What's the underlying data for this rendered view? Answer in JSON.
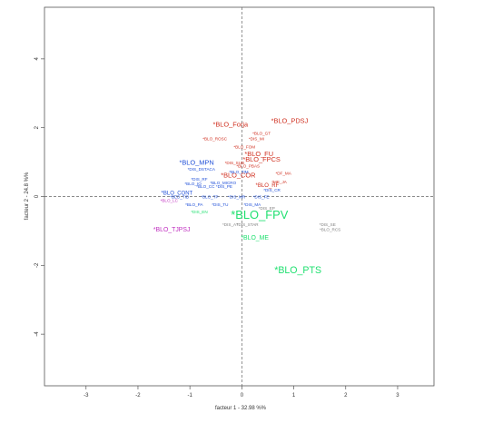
{
  "colors": {
    "red": "#d03020",
    "blue": "#2050d8",
    "green": "#20e070",
    "magenta": "#c030c0",
    "grey": "#808080",
    "frame": "#555555"
  },
  "chart_data": {
    "type": "scatter",
    "xlabel": "facteur 1 - 32.98 %%",
    "ylabel": "facteur 2 - 24.8 %%",
    "xlim": [
      -3.8,
      3.7
    ],
    "ylim": [
      -5.5,
      5.5
    ],
    "x_ticks": [
      -3,
      -2,
      -1,
      0,
      1,
      2,
      3
    ],
    "y_ticks": [
      -4,
      -2,
      0,
      2,
      4
    ],
    "reference_lines": {
      "x": 0,
      "y": 0,
      "style": "dashed"
    },
    "grid": false,
    "points": [
      {
        "label": "*BLO_PDSJ",
        "x": 0.92,
        "y": 2.19,
        "color": "red",
        "size": 1.6
      },
      {
        "label": "*BLO_Forja",
        "x": -0.22,
        "y": 2.08,
        "color": "red",
        "size": 1.6
      },
      {
        "label": "*BLO_GT",
        "x": 0.38,
        "y": 1.82,
        "color": "red",
        "size": 1.0
      },
      {
        "label": "*BLO_ROSC",
        "x": -0.52,
        "y": 1.67,
        "color": "red",
        "size": 1.0
      },
      {
        "label": "*DIS_MI",
        "x": 0.28,
        "y": 1.67,
        "color": "red",
        "size": 1.0
      },
      {
        "label": "*BLO_FOM",
        "x": 0.05,
        "y": 1.43,
        "color": "red",
        "size": 1.0
      },
      {
        "label": "*BLO_FU",
        "x": 0.33,
        "y": 1.23,
        "color": "red",
        "size": 1.6
      },
      {
        "label": "*BLO_FPCS",
        "x": 0.38,
        "y": 1.07,
        "color": "red",
        "size": 1.6
      },
      {
        "label": "*DIS_SUB",
        "x": -0.14,
        "y": 0.97,
        "color": "red",
        "size": 1.0
      },
      {
        "label": "*BLO_PBAS",
        "x": 0.12,
        "y": 0.88,
        "color": "red",
        "size": 1.0
      },
      {
        "label": "*BLO_COR",
        "x": -0.07,
        "y": 0.61,
        "color": "red",
        "size": 1.6
      },
      {
        "label": "*DF_MA",
        "x": 0.8,
        "y": 0.66,
        "color": "red",
        "size": 1.0
      },
      {
        "label": "*BLO_MPN",
        "x": -0.87,
        "y": 0.97,
        "color": "blue",
        "size": 1.6
      },
      {
        "label": "*DIS_DSTACA",
        "x": -0.78,
        "y": 0.78,
        "color": "blue",
        "size": 1.0
      },
      {
        "label": "*BLO_TIM",
        "x": -0.06,
        "y": 0.7,
        "color": "blue",
        "size": 1.0
      },
      {
        "label": "*DIS_RF",
        "x": -0.82,
        "y": 0.5,
        "color": "blue",
        "size": 1.0
      },
      {
        "label": "*BLO_IO",
        "x": -0.94,
        "y": 0.36,
        "color": "blue",
        "size": 1.0
      },
      {
        "label": "*BLO_CC",
        "x": -0.7,
        "y": 0.28,
        "color": "blue",
        "size": 1.0
      },
      {
        "label": "*DIS_PE",
        "x": -0.34,
        "y": 0.28,
        "color": "blue",
        "size": 1.0
      },
      {
        "label": "*BLO_CONT",
        "x": -1.25,
        "y": 0.1,
        "color": "blue",
        "size": 1.3
      },
      {
        "label": "*DIS_CR",
        "x": 0.58,
        "y": 0.18,
        "color": "blue",
        "size": 1.0
      },
      {
        "label": "*BLO_MICRO",
        "x": -0.36,
        "y": 0.39,
        "color": "blue",
        "size": 1.0
      },
      {
        "label": "*BLO_RF",
        "x": 0.49,
        "y": 0.32,
        "color": "red",
        "size": 1.3
      },
      {
        "label": "*ME_JA",
        "x": 0.72,
        "y": 0.42,
        "color": "red",
        "size": 1.0
      },
      {
        "label": "*BLO_TID",
        "x": -1.2,
        "y": -0.02,
        "color": "blue",
        "size": 1.0
      },
      {
        "label": "*BLO_TP",
        "x": -0.62,
        "y": -0.02,
        "color": "blue",
        "size": 1.0
      },
      {
        "label": "*DIS_MR",
        "x": -0.1,
        "y": -0.02,
        "color": "blue",
        "size": 1.0
      },
      {
        "label": "*DIS_FE",
        "x": 0.37,
        "y": -0.02,
        "color": "blue",
        "size": 1.0
      },
      {
        "label": "*BLO_LC",
        "x": -1.4,
        "y": -0.12,
        "color": "magenta",
        "size": 1.0
      },
      {
        "label": "*BLO_PA",
        "x": -0.92,
        "y": -0.24,
        "color": "blue",
        "size": 1.0
      },
      {
        "label": "*DIS_TU",
        "x": -0.42,
        "y": -0.24,
        "color": "blue",
        "size": 1.0
      },
      {
        "label": "*DIS_MA",
        "x": 0.2,
        "y": -0.24,
        "color": "blue",
        "size": 1.0
      },
      {
        "label": "*DIS_EN",
        "x": -0.82,
        "y": -0.46,
        "color": "green",
        "size": 1.0
      },
      {
        "label": "*BLO_FPV",
        "x": 0.34,
        "y": -0.56,
        "color": "green",
        "size": 2.8
      },
      {
        "label": "*BLO_TJPSJ",
        "x": -1.35,
        "y": -0.97,
        "color": "magenta",
        "size": 1.5
      },
      {
        "label": "*BLO_ME",
        "x": 0.25,
        "y": -1.2,
        "color": "green",
        "size": 1.5
      },
      {
        "label": "*BLO_PTS",
        "x": 1.08,
        "y": -2.15,
        "color": "green",
        "size": 2.3
      },
      {
        "label": "*DIS_SE",
        "x": 1.65,
        "y": -0.82,
        "color": "grey",
        "size": 1.0
      },
      {
        "label": "*BLO_RCS",
        "x": 1.7,
        "y": -0.97,
        "color": "grey",
        "size": 1.0
      },
      {
        "label": "*DIS_AT",
        "x": -0.22,
        "y": -0.82,
        "color": "grey",
        "size": 1.0
      },
      {
        "label": "*DIS_STAR",
        "x": 0.11,
        "y": -0.82,
        "color": "grey",
        "size": 1.0
      },
      {
        "label": "*DIS_EP",
        "x": 0.48,
        "y": -0.35,
        "color": "grey",
        "size": 1.0
      }
    ]
  }
}
